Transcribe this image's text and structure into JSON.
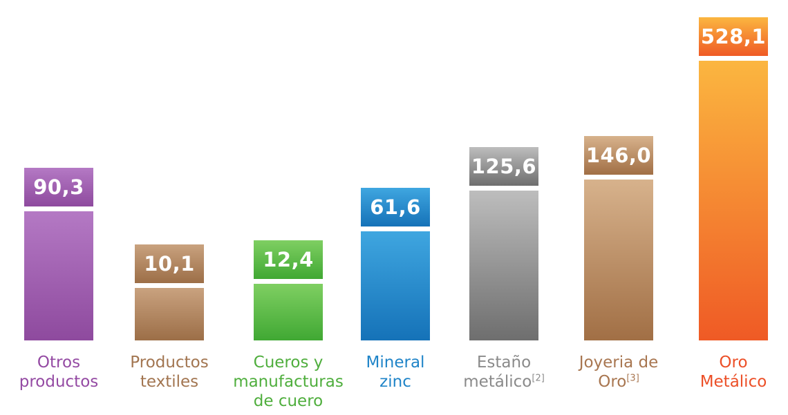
{
  "chart_data": {
    "type": "bar",
    "categories": [
      {
        "lines": [
          "Otros",
          "productos"
        ],
        "sup": ""
      },
      {
        "lines": [
          "Productos",
          "textiles"
        ],
        "sup": ""
      },
      {
        "lines": [
          "Cueros y",
          "manufacturas",
          "de cuero"
        ],
        "sup": ""
      },
      {
        "lines": [
          "Mineral",
          "zinc"
        ],
        "sup": ""
      },
      {
        "lines": [
          "Estaño",
          "metálico"
        ],
        "sup": "[2]"
      },
      {
        "lines": [
          "Joyeria de",
          "Oro"
        ],
        "sup": "[3]"
      },
      {
        "lines": [
          "Oro",
          "Metálico"
        ],
        "sup": ""
      }
    ],
    "values": [
      90.3,
      10.1,
      12.4,
      61.6,
      125.6,
      146.0,
      528.1
    ],
    "value_labels": [
      "90,3",
      "10,1",
      "12,4",
      "61,6",
      "125,6",
      "146,0",
      "528,1"
    ],
    "colors": [
      {
        "top": "#b479c4",
        "bottom": "#8e4a9e",
        "label": "#944aa3"
      },
      {
        "top": "#c9a27f",
        "bottom": "#9c6e47",
        "label": "#a27550"
      },
      {
        "top": "#7fcf62",
        "bottom": "#40a833",
        "label": "#4fae3d"
      },
      {
        "top": "#3fa6e0",
        "bottom": "#1572b8",
        "label": "#1f84c8"
      },
      {
        "top": "#bdbdbd",
        "bottom": "#6e6e6e",
        "label": "#8a8a8a"
      },
      {
        "top": "#d7b28c",
        "bottom": "#a16f45",
        "label": "#a87650"
      },
      {
        "top": "#fbb640",
        "bottom": "#ef5a25",
        "label": "#ec4f27"
      }
    ],
    "scale_note": "bar heights are not proportional; Oro Metálico bar is truncated"
  }
}
